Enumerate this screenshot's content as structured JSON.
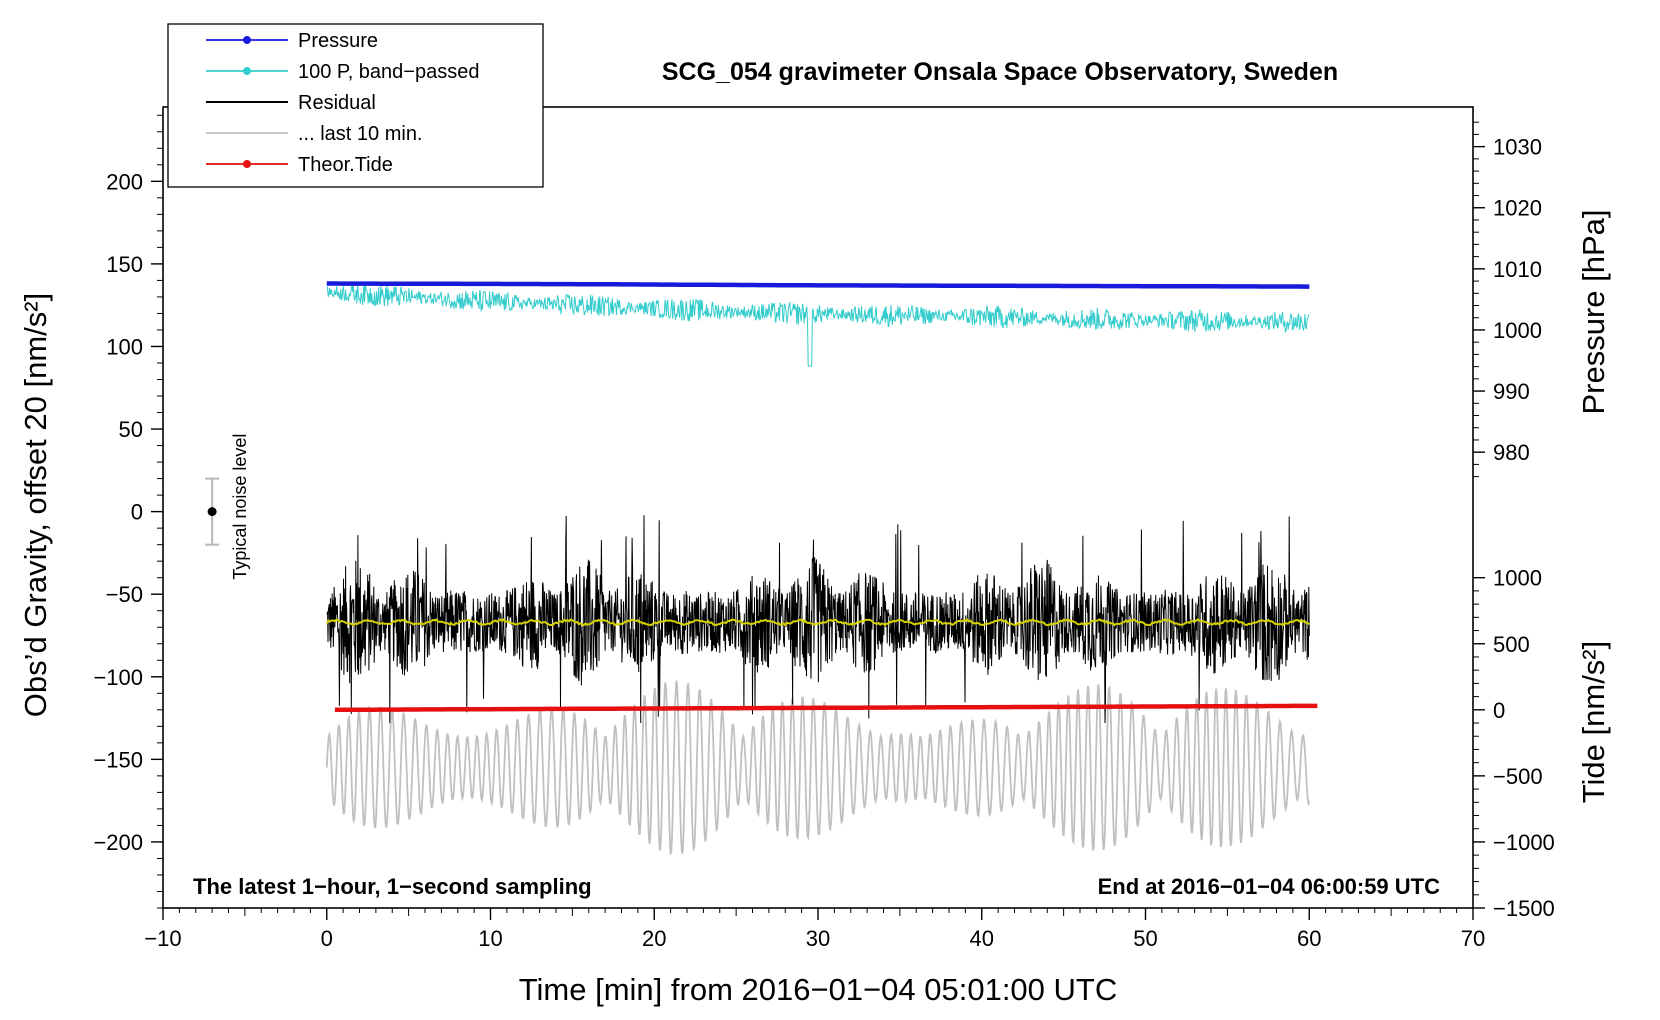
{
  "colors": {
    "pressure": "#1a1adc",
    "bandpassed": "#34cccc",
    "residual": "#000000",
    "last10": "#c0c0c0",
    "theor_tide": "#e61010",
    "smoothed": "#d4d000",
    "noise_bar": "#b8b8b8"
  },
  "chart_data": {
    "type": "line",
    "title": "SCG_054 gravimeter Onsala Space Observatory, Sweden",
    "xlabel": "Time [min] from 2016−01−04 05:01:00 UTC",
    "ylabel_left": "Obs’d Gravity, offset 20 [nm/s²]",
    "ylabel_pressure": "Pressure [hPa]",
    "ylabel_tide": "Tide [nm/s²]",
    "xlim": [
      -10,
      70
    ],
    "ylim_left": [
      -240,
      245
    ],
    "x_ticks": [
      -10,
      0,
      10,
      20,
      30,
      40,
      50,
      60,
      70
    ],
    "x_tick_labels": [
      "−10",
      "0",
      "10",
      "20",
      "30",
      "40",
      "50",
      "60",
      "70"
    ],
    "y_ticks_left": [
      200,
      150,
      100,
      50,
      0,
      -50,
      -100,
      -150,
      -200
    ],
    "y_tick_labels_left": [
      "200",
      "150",
      "100",
      "50",
      "0",
      "−50",
      "−100",
      "−150",
      "−200"
    ],
    "pressure_axis": {
      "ticks": [
        1030,
        1020,
        1010,
        1000,
        990,
        980
      ],
      "tick_labels": [
        "1030",
        "1020",
        "1010",
        "1000",
        "990",
        "980"
      ],
      "map_to_left": {
        "value_a": 1030,
        "left_a": 221,
        "value_b": 980,
        "left_b": 36
      }
    },
    "tide_axis": {
      "ticks": [
        1000,
        500,
        0,
        -500,
        -1000,
        -1500
      ],
      "tick_labels": [
        "1000",
        "500",
        "0",
        "−500",
        "−1000",
        "−1500"
      ],
      "map_to_left": {
        "value_a": 1000,
        "left_a": -40,
        "value_b": -1500,
        "left_b": -240
      }
    },
    "legend": {
      "position": "top-left",
      "entries": [
        {
          "label": "Pressure",
          "key": "pressure",
          "marker": true
        },
        {
          "label": "100 P, band−passed",
          "key": "bandpassed",
          "marker": true
        },
        {
          "label": "Residual",
          "key": "residual",
          "marker": false
        },
        {
          "label": "... last 10 min.",
          "key": "last10",
          "marker": false
        },
        {
          "label": "Theor.Tide",
          "key": "theor_tide",
          "marker": true
        }
      ]
    },
    "noise_level": {
      "label": "Typical noise level",
      "x": -7,
      "center": 0,
      "half_range": 20
    },
    "annotations": {
      "bottom_left": "The latest 1−hour, 1−second sampling",
      "bottom_right": "End at 2016−01−04 06:00:59 UTC"
    },
    "series": [
      {
        "name": "Pressure",
        "key": "pressure",
        "unit": "hPa",
        "x": [
          0,
          15,
          30,
          45,
          60
        ],
        "values": [
          1007.6,
          1007.5,
          1007.3,
          1007.2,
          1007.1
        ]
      },
      {
        "name": "100 P, band−passed",
        "key": "bandpassed",
        "unit": "nm/s² (left axis)",
        "x": [
          0,
          10,
          20,
          29.5,
          40,
          50,
          60
        ],
        "values": [
          133,
          127,
          123,
          88,
          118,
          116,
          115
        ]
      },
      {
        "name": "Residual",
        "key": "residual",
        "unit": "nm/s² (left axis)",
        "x": [
          0,
          60
        ],
        "values": [
          -67,
          -67
        ],
        "range": [
          -128,
          3
        ]
      },
      {
        "name": "... last 10 min.",
        "key": "last10",
        "unit": "nm/s² (left axis)",
        "x": [
          0,
          60
        ],
        "values": [
          -155,
          -155
        ],
        "range": [
          -208,
          -102
        ]
      },
      {
        "name": "Theor.Tide",
        "key": "theor_tide",
        "unit": "nm/s² (tide axis)",
        "x": [
          0.5,
          20,
          40,
          60.5
        ],
        "values": [
          0,
          10,
          20,
          30
        ]
      }
    ]
  }
}
